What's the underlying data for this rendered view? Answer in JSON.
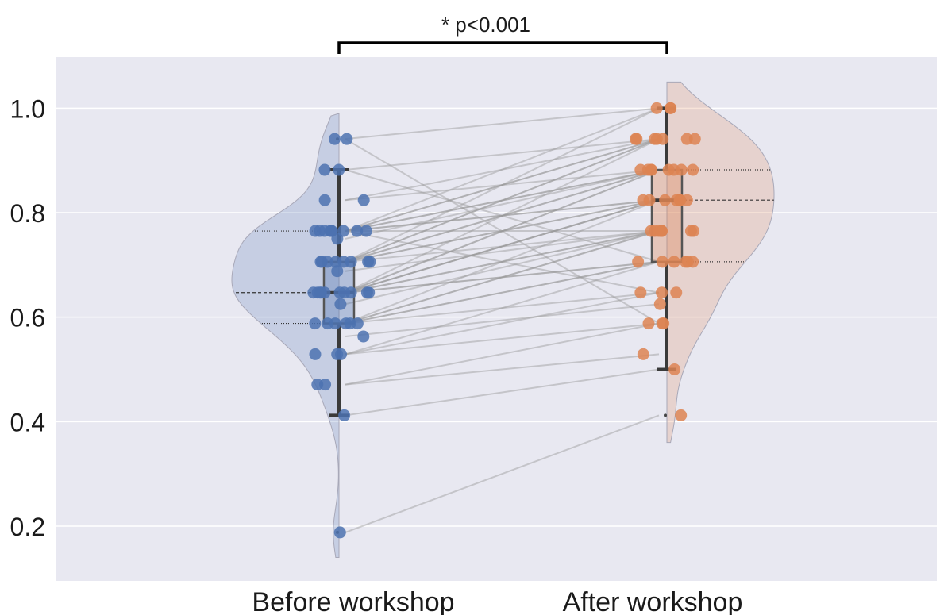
{
  "annotation": "* p<0.001",
  "chart_data": {
    "type": "raincloud-paired",
    "categories": [
      "Before workshop",
      "After workshop"
    ],
    "ylim": [
      0.1,
      1.1
    ],
    "yticks": [
      "0.2",
      "0.4",
      "0.6",
      "0.8",
      "1.0"
    ],
    "grid": true,
    "colors": {
      "before": "#4c72b0",
      "after": "#dd8452",
      "background": "#e8e8f1",
      "lines": "#9a9a9a",
      "box": "#3a3a3a"
    },
    "boxplots": [
      {
        "category": "Before workshop",
        "whisker_low": 0.412,
        "q1": 0.588,
        "median": 0.647,
        "q3": 0.706,
        "whisker_high": 0.882,
        "outliers": [
          0.941,
          0.188
        ]
      },
      {
        "category": "After workshop",
        "whisker_low": 0.5,
        "q1": 0.706,
        "median": 0.824,
        "q3": 0.882,
        "whisker_high": 1.0,
        "outliers": [
          0.412
        ]
      }
    ],
    "pairs": [
      [
        0.188,
        0.412
      ],
      [
        0.412,
        0.5
      ],
      [
        0.471,
        0.529
      ],
      [
        0.471,
        0.588
      ],
      [
        0.529,
        0.588
      ],
      [
        0.529,
        0.647
      ],
      [
        0.529,
        0.706
      ],
      [
        0.563,
        0.625
      ],
      [
        0.588,
        0.647
      ],
      [
        0.588,
        0.706
      ],
      [
        0.588,
        0.706
      ],
      [
        0.588,
        0.765
      ],
      [
        0.588,
        0.765
      ],
      [
        0.588,
        0.824
      ],
      [
        0.625,
        0.765
      ],
      [
        0.647,
        0.706
      ],
      [
        0.647,
        0.706
      ],
      [
        0.647,
        0.765
      ],
      [
        0.647,
        0.765
      ],
      [
        0.647,
        0.824
      ],
      [
        0.647,
        0.824
      ],
      [
        0.647,
        0.824
      ],
      [
        0.647,
        0.882
      ],
      [
        0.647,
        0.882
      ],
      [
        0.647,
        0.941
      ],
      [
        0.688,
        0.765
      ],
      [
        0.706,
        0.765
      ],
      [
        0.706,
        0.824
      ],
      [
        0.706,
        0.824
      ],
      [
        0.706,
        0.882
      ],
      [
        0.706,
        0.882
      ],
      [
        0.706,
        0.941
      ],
      [
        0.706,
        0.941
      ],
      [
        0.706,
        1.0
      ],
      [
        0.75,
        0.882
      ],
      [
        0.765,
        0.765
      ],
      [
        0.765,
        0.824
      ],
      [
        0.765,
        0.824
      ],
      [
        0.765,
        0.882
      ],
      [
        0.765,
        0.882
      ],
      [
        0.765,
        0.941
      ],
      [
        0.765,
        0.941
      ],
      [
        0.765,
        1.0
      ],
      [
        0.765,
        0.647
      ],
      [
        0.824,
        0.882
      ],
      [
        0.824,
        0.941
      ],
      [
        0.882,
        0.941
      ],
      [
        0.882,
        0.706
      ],
      [
        0.941,
        1.0
      ],
      [
        0.941,
        0.588
      ]
    ]
  }
}
